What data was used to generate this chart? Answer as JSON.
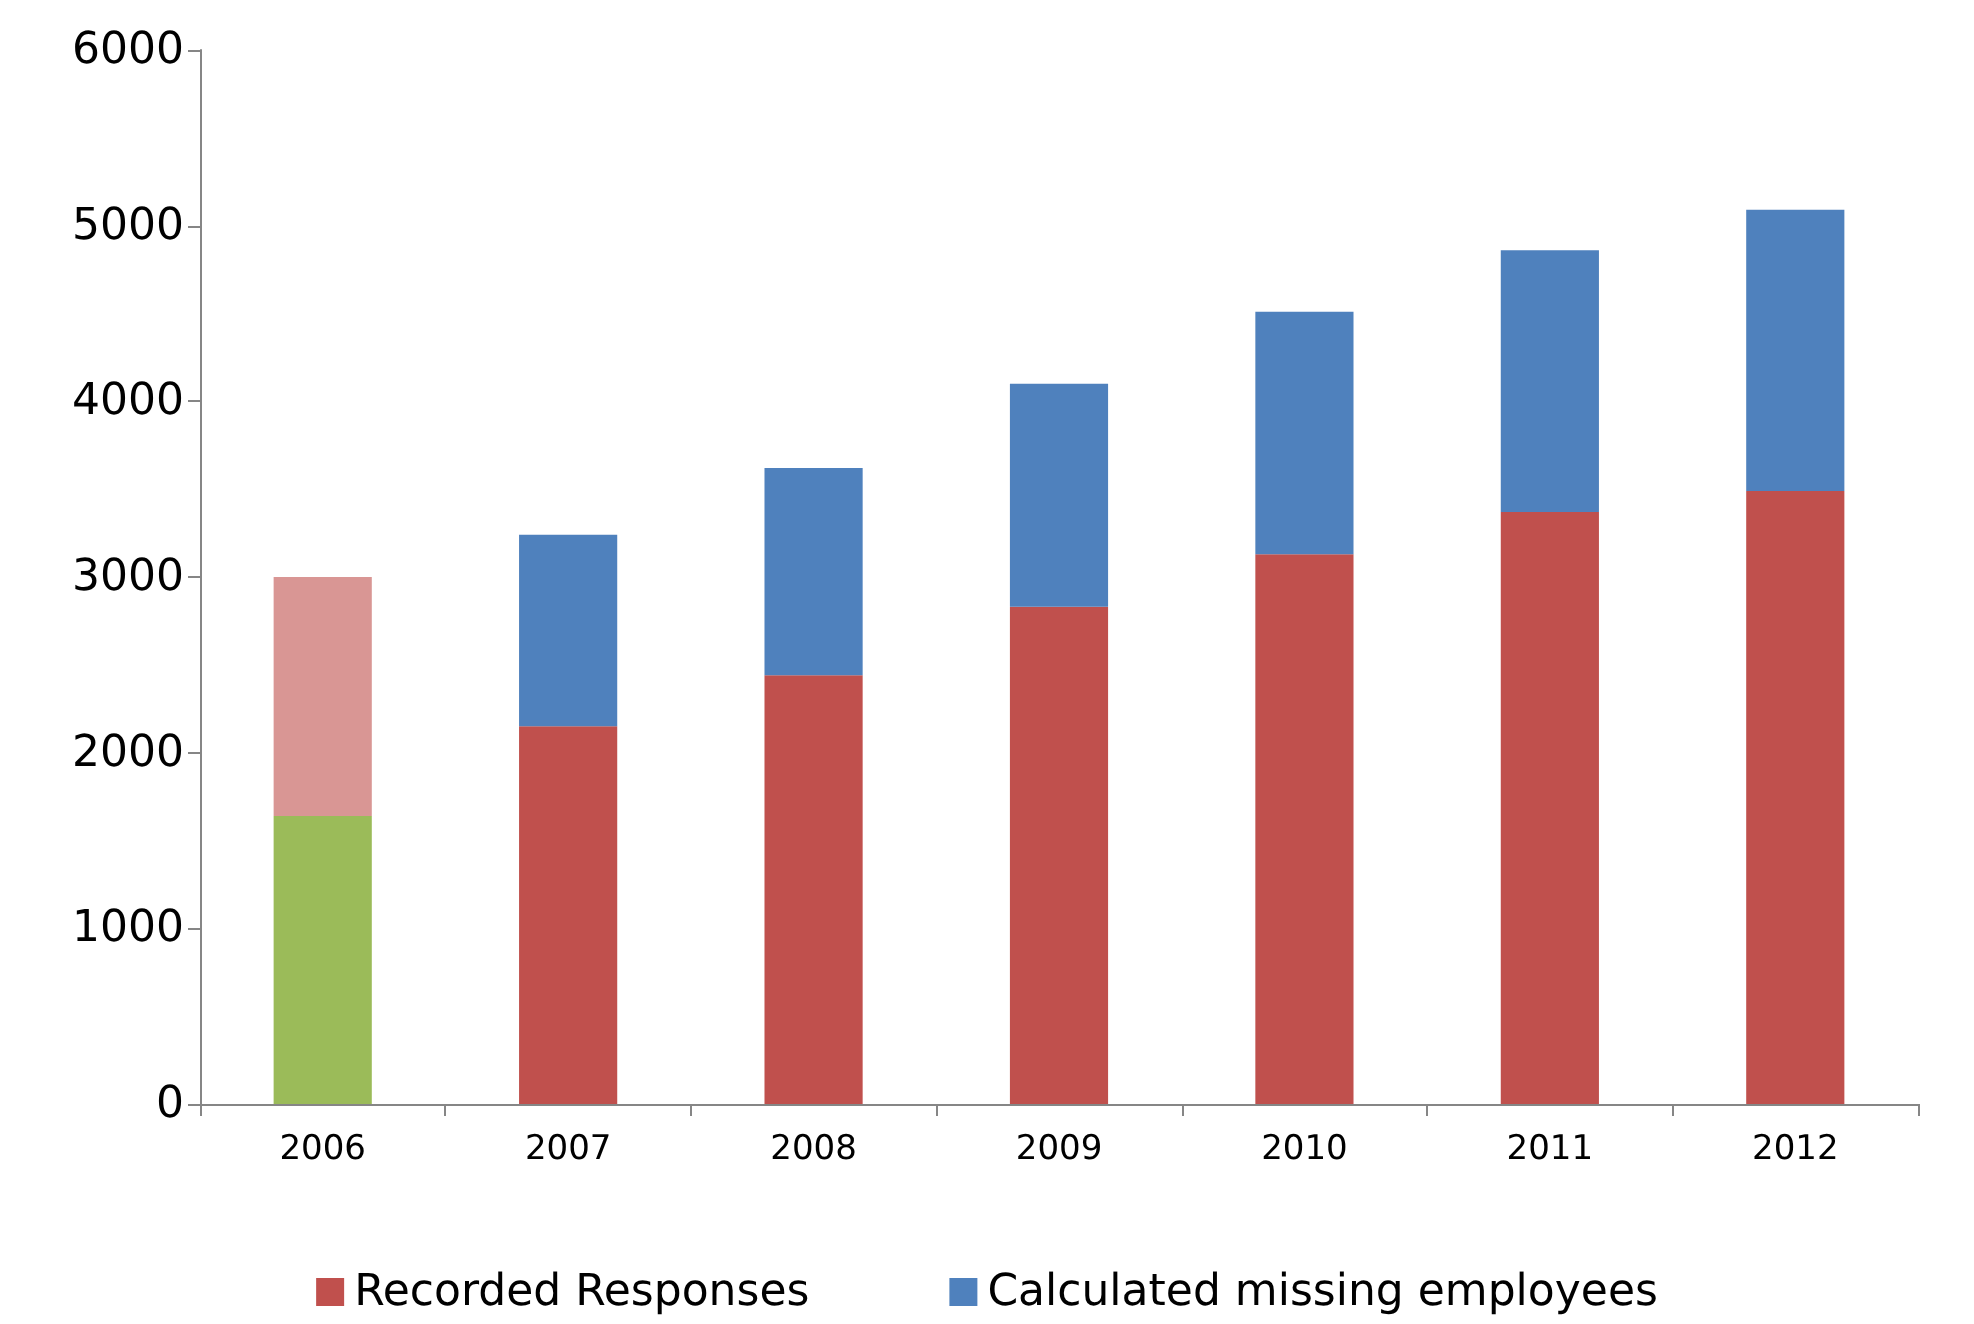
{
  "chart_data": {
    "type": "bar",
    "stacked": true,
    "categories": [
      "2006",
      "2007",
      "2008",
      "2009",
      "2010",
      "2011",
      "2012"
    ],
    "series": [
      {
        "name": "Recorded Responses",
        "color": "#c0504d",
        "colors": [
          "#9bbb59",
          "#c0504d",
          "#c0504d",
          "#c0504d",
          "#c0504d",
          "#c0504d",
          "#c0504d"
        ],
        "values": [
          1640,
          2150,
          2440,
          2830,
          3130,
          3370,
          3490
        ]
      },
      {
        "name": "Calculated missing employees",
        "color": "#4f81bd",
        "colors": [
          "#d99694",
          "#4f81bd",
          "#4f81bd",
          "#4f81bd",
          "#4f81bd",
          "#4f81bd",
          "#4f81bd"
        ],
        "values": [
          1360,
          1090,
          1180,
          1270,
          1380,
          1490,
          1600
        ]
      }
    ],
    "ylim": [
      0,
      6000
    ],
    "yticks": [
      0,
      1000,
      2000,
      3000,
      4000,
      5000,
      6000
    ],
    "grid": false,
    "legend": "bottom"
  }
}
